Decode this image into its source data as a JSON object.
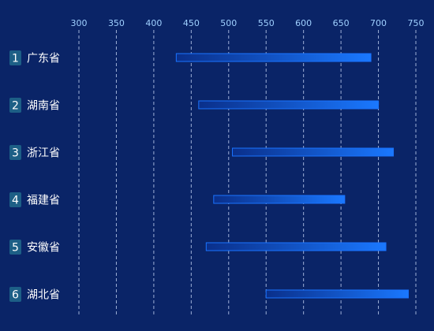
{
  "chart_data": {
    "type": "bar",
    "orientation": "horizontal",
    "categories": [
      "广东省",
      "湖南省",
      "浙江省",
      "福建省",
      "安徽省",
      "湖北省"
    ],
    "ranks": [
      "1",
      "2",
      "3",
      "4",
      "5",
      "6"
    ],
    "series": [
      {
        "values": [
          430,
          460,
          505,
          480,
          470,
          550
        ]
      },
      {
        "values": [
          690,
          700,
          720,
          655,
          710,
          740
        ]
      }
    ],
    "xlim": [
      300,
      750
    ],
    "xticks": [
      "300",
      "350",
      "400",
      "450",
      "500",
      "550",
      "600",
      "650",
      "700",
      "750"
    ],
    "grid": true,
    "colors": {
      "background": "#0a2467",
      "grid": "#b8c8ea",
      "bar_stroke": "#1a73ff",
      "bar_fill_start": "#0a2f8a",
      "bar_fill_end": "#1a78ff",
      "rank_badge": "#1d5f86",
      "tick_text": "#9fd0ff",
      "label_text": "#ffffff"
    }
  }
}
